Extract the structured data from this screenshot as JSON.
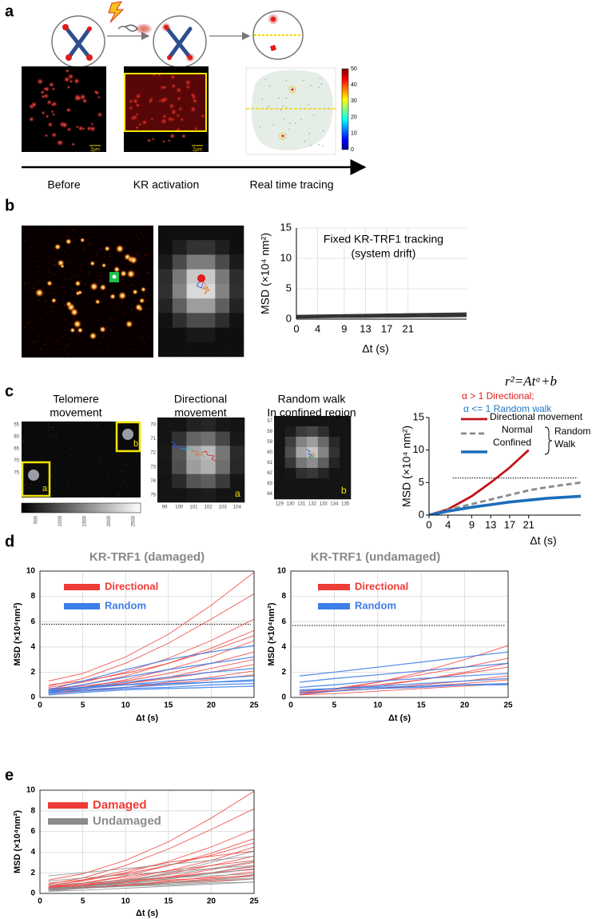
{
  "panels": {
    "a": {
      "letter": "a",
      "labels": [
        "Before",
        "KR activation",
        "Real time tracing"
      ],
      "scale_bar": "2μm",
      "colorbar_ticks": [
        "0",
        "10",
        "20",
        "30",
        "40",
        "50"
      ]
    },
    "b": {
      "letter": "b"
    },
    "c": {
      "letter": "c",
      "titles": [
        [
          "Telomere",
          "movement"
        ],
        [
          "Directional",
          "movement"
        ],
        [
          "Random walk",
          "In confined region"
        ]
      ],
      "insets": [
        "a",
        "b"
      ],
      "telomere_yticks": [
        "55",
        "60",
        "65",
        "70",
        "75"
      ],
      "colorbar_ticks": [
        "500",
        "1000",
        "1500",
        "2000",
        "2500"
      ],
      "directional_yticks": [
        "70",
        "71",
        "72",
        "73",
        "74",
        "75"
      ],
      "directional_xticks": [
        "99",
        "100",
        "101",
        "102",
        "103",
        "104"
      ],
      "random_yticks": [
        "57",
        "58",
        "59",
        "60",
        "61",
        "62",
        "63",
        "64"
      ],
      "random_xticks": [
        "129",
        "130",
        "131",
        "132",
        "133",
        "134",
        "135"
      ]
    },
    "d": {
      "letter": "d"
    },
    "e": {
      "letter": "e"
    }
  },
  "chart_data": [
    {
      "type": "line",
      "title": [
        "Fixed KR-TRF1 tracking",
        "(system drift)"
      ],
      "xlabel": "Δt (s)",
      "ylabel": "MSD (×10⁴ nm²)",
      "x": [
        0,
        4,
        8,
        12,
        16,
        20,
        24,
        28,
        32
      ],
      "xlim": [
        0,
        32
      ],
      "ylim": [
        0,
        15
      ],
      "xticks": [
        0,
        4,
        9,
        13,
        17,
        21
      ],
      "yticks": [
        0,
        5,
        10,
        15
      ],
      "grid": true,
      "series": [
        {
          "color": "#333333",
          "lines": [
            [
              0.2,
              0.25,
              0.3,
              0.3,
              0.35,
              0.35,
              0.4,
              0.4,
              0.45
            ],
            [
              0.35,
              0.4,
              0.45,
              0.5,
              0.5,
              0.55,
              0.6,
              0.6,
              0.65
            ],
            [
              0.5,
              0.55,
              0.6,
              0.6,
              0.65,
              0.7,
              0.75,
              0.8,
              0.8
            ],
            [
              0.6,
              0.65,
              0.7,
              0.75,
              0.8,
              0.85,
              0.9,
              0.95,
              1.0
            ],
            [
              0.25,
              0.3,
              0.35,
              0.4,
              0.45,
              0.5,
              0.55,
              0.55,
              0.6
            ]
          ]
        }
      ]
    },
    {
      "type": "line",
      "xlabel": "Δt (s)",
      "ylabel": "MSD (×10⁴ nm²)",
      "annotations": [
        {
          "text": "r²=Atᵅ+b",
          "color": "#000000"
        },
        {
          "text": "α   > 1 Directional;",
          "color": "#e0201b"
        },
        {
          "text": "α <= 1 Random walk",
          "color": "#1f77c9"
        }
      ],
      "x": [
        0,
        4,
        9,
        13,
        17,
        21,
        25,
        32
      ],
      "xlim": [
        0,
        32
      ],
      "ylim": [
        0,
        15
      ],
      "xticks": [
        0,
        4,
        9,
        13,
        17,
        21
      ],
      "yticks": [
        0,
        5,
        10,
        15
      ],
      "grid": false,
      "reference_line": 5.7,
      "legend_bracket": [
        "Random",
        "Walk"
      ],
      "series": [
        {
          "name": "Directional movement",
          "color": "#c0141b",
          "line_style": "solid",
          "lines": [
            [
              0,
              0.9,
              2.9,
              5.0,
              7.3,
              10,
              null,
              null
            ]
          ]
        },
        {
          "name": "Normal",
          "color": "#8a8a8a",
          "line_style": "dashed",
          "lines": [
            [
              0,
              0.8,
              1.7,
              2.4,
              3.1,
              3.8,
              4.3,
              5.0
            ]
          ]
        },
        {
          "name": "Confined",
          "color": "#1a6fba",
          "line_style": "solid",
          "lines": [
            [
              0,
              0.6,
              1.2,
              1.6,
              2.0,
              2.3,
              2.6,
              2.9
            ]
          ]
        }
      ]
    },
    {
      "type": "line",
      "title": "KR-TRF1  (damaged)",
      "xlabel": "Δt (s)",
      "ylabel": "MSD (×10⁴nm²)",
      "x": [
        1,
        5,
        10,
        15,
        20,
        25
      ],
      "xlim": [
        0,
        25
      ],
      "ylim": [
        0,
        10
      ],
      "xticks": [
        0,
        5,
        10,
        15,
        20,
        25
      ],
      "yticks": [
        0,
        2,
        4,
        6,
        8,
        10
      ],
      "grid": true,
      "reference_line": 5.8,
      "series": [
        {
          "name": "Directional",
          "color": "#ee3b36",
          "lines": [
            [
              1.3,
              1.9,
              3.2,
              5.0,
              7.3,
              9.9
            ],
            [
              0.9,
              1.5,
              2.7,
              4.3,
              6.2,
              8.2
            ],
            [
              0.8,
              1.2,
              2.0,
              3.1,
              4.5,
              6.2
            ],
            [
              0.6,
              1.0,
              1.7,
              2.7,
              3.9,
              5.3
            ],
            [
              1.0,
              1.3,
              1.9,
              2.7,
              3.7,
              4.9
            ],
            [
              0.5,
              0.8,
              1.4,
              2.2,
              3.2,
              4.5
            ],
            [
              0.7,
              0.9,
              1.3,
              1.9,
              2.7,
              3.6
            ],
            [
              0.4,
              0.7,
              1.1,
              1.6,
              2.3,
              3.0
            ],
            [
              0.6,
              0.8,
              1.1,
              1.5,
              2.0,
              2.6
            ],
            [
              0.3,
              0.5,
              0.8,
              1.2,
              1.6,
              2.1
            ],
            [
              0.5,
              0.6,
              0.8,
              1.1,
              1.4,
              1.8
            ]
          ]
        },
        {
          "name": "Random",
          "color": "#3d7ee8",
          "lines": [
            [
              0.6,
              1.3,
              2.2,
              3.0,
              3.6,
              4.1
            ],
            [
              0.5,
              1.0,
              1.6,
              2.2,
              2.7,
              3.2
            ],
            [
              0.4,
              0.8,
              1.2,
              1.6,
              2.0,
              2.3
            ],
            [
              0.5,
              0.7,
              1.0,
              1.3,
              1.5,
              1.7
            ],
            [
              0.3,
              0.6,
              0.8,
              1.0,
              1.2,
              1.4
            ],
            [
              0.4,
              0.5,
              0.7,
              0.8,
              1.0,
              1.1
            ],
            [
              0.2,
              0.4,
              0.6,
              0.7,
              0.8,
              0.9
            ],
            [
              0.6,
              0.8,
              1.0,
              1.1,
              1.2,
              1.3
            ]
          ]
        }
      ]
    },
    {
      "type": "line",
      "title": "KR-TRF1 (undamaged)",
      "xlabel": "Δt (s)",
      "ylabel": "MSD (×10⁴nm²)",
      "x": [
        1,
        5,
        10,
        15,
        20,
        25
      ],
      "xlim": [
        0,
        25
      ],
      "ylim": [
        0,
        10
      ],
      "xticks": [
        0,
        5,
        10,
        15,
        20,
        25
      ],
      "yticks": [
        0,
        2,
        4,
        6,
        8,
        10
      ],
      "grid": true,
      "reference_line": 5.7,
      "series": [
        {
          "name": "Directional",
          "color": "#ee3b36",
          "lines": [
            [
              0.3,
              0.6,
              1.2,
              2.0,
              3.0,
              4.1
            ],
            [
              0.4,
              0.7,
              1.2,
              1.8,
              2.4,
              3.1
            ],
            [
              0.2,
              0.5,
              0.9,
              1.4,
              2.0,
              2.7
            ],
            [
              0.5,
              0.7,
              1.0,
              1.4,
              1.9,
              2.4
            ],
            [
              0.3,
              0.5,
              0.7,
              1.0,
              1.3,
              1.7
            ],
            [
              0.4,
              0.5,
              0.7,
              0.9,
              1.1,
              1.4
            ],
            [
              0.2,
              0.3,
              0.5,
              0.7,
              0.9,
              1.1
            ]
          ]
        },
        {
          "name": "Random",
          "color": "#3d7ee8",
          "lines": [
            [
              1.7,
              2.0,
              2.4,
              2.8,
              3.2,
              3.6
            ],
            [
              1.2,
              1.5,
              1.8,
              2.1,
              2.4,
              2.7
            ],
            [
              0.8,
              1.0,
              1.3,
              1.5,
              1.7,
              1.9
            ],
            [
              0.5,
              0.7,
              0.9,
              1.1,
              1.3,
              1.5
            ],
            [
              0.3,
              0.5,
              0.7,
              0.8,
              1.0,
              1.1
            ],
            [
              0.6,
              0.7,
              0.8,
              0.9,
              1.0,
              1.0
            ]
          ]
        }
      ]
    },
    {
      "type": "line",
      "ylabel": "MSD (×10⁴nm²)",
      "xlabel": "Δt (s)",
      "x": [
        1,
        5,
        10,
        15,
        20,
        25
      ],
      "xlim": [
        0,
        25
      ],
      "ylim": [
        0,
        10
      ],
      "xticks": [
        0,
        5,
        10,
        15,
        20,
        25
      ],
      "yticks": [
        0,
        2,
        4,
        6,
        8,
        10
      ],
      "grid": true,
      "series": [
        {
          "name": "Damaged",
          "color": "#ee3b36",
          "lines": [
            [
              1.3,
              1.9,
              3.2,
              5.0,
              7.3,
              9.9
            ],
            [
              0.9,
              1.5,
              2.7,
              4.3,
              6.2,
              8.2
            ],
            [
              0.8,
              1.2,
              2.0,
              3.1,
              4.5,
              6.2
            ],
            [
              0.6,
              1.0,
              1.7,
              2.7,
              3.9,
              5.3
            ],
            [
              1.0,
              1.3,
              1.9,
              2.7,
              3.7,
              4.9
            ],
            [
              0.5,
              0.8,
              1.4,
              2.2,
              3.2,
              4.5
            ],
            [
              0.7,
              0.9,
              1.3,
              1.9,
              2.7,
              3.6
            ],
            [
              0.4,
              0.7,
              1.1,
              1.6,
              2.3,
              3.0
            ],
            [
              0.6,
              0.8,
              1.1,
              1.5,
              2.0,
              2.6
            ],
            [
              0.3,
              0.5,
              0.8,
              1.2,
              1.6,
              2.1
            ],
            [
              0.5,
              0.6,
              0.8,
              1.1,
              1.4,
              1.8
            ],
            [
              0.6,
              1.3,
              2.2,
              3.0,
              3.6,
              4.1
            ],
            [
              0.5,
              1.0,
              1.6,
              2.2,
              2.7,
              3.2
            ],
            [
              0.4,
              0.8,
              1.2,
              1.6,
              2.0,
              2.3
            ],
            [
              0.5,
              0.7,
              1.0,
              1.3,
              1.5,
              1.7
            ],
            [
              0.3,
              0.6,
              0.8,
              1.0,
              1.2,
              1.4
            ]
          ]
        },
        {
          "name": "Undamaged",
          "color": "#8c8c8c",
          "lines": [
            [
              0.3,
              0.6,
              1.2,
              2.0,
              3.0,
              4.1
            ],
            [
              0.4,
              0.7,
              1.2,
              1.8,
              2.4,
              3.1
            ],
            [
              0.2,
              0.5,
              0.9,
              1.4,
              2.0,
              2.7
            ],
            [
              0.5,
              0.7,
              1.0,
              1.4,
              1.9,
              2.4
            ],
            [
              0.3,
              0.5,
              0.7,
              1.0,
              1.3,
              1.7
            ],
            [
              0.4,
              0.5,
              0.7,
              0.9,
              1.1,
              1.4
            ],
            [
              0.2,
              0.3,
              0.5,
              0.7,
              0.9,
              1.1
            ],
            [
              1.7,
              2.0,
              2.4,
              2.8,
              3.2,
              3.6
            ],
            [
              1.2,
              1.5,
              1.8,
              2.1,
              2.4,
              2.7
            ],
            [
              0.8,
              1.0,
              1.3,
              1.5,
              1.7,
              1.9
            ],
            [
              0.5,
              0.7,
              0.9,
              1.1,
              1.3,
              1.5
            ],
            [
              0.3,
              0.5,
              0.7,
              0.8,
              1.0,
              1.1
            ]
          ]
        }
      ]
    }
  ]
}
